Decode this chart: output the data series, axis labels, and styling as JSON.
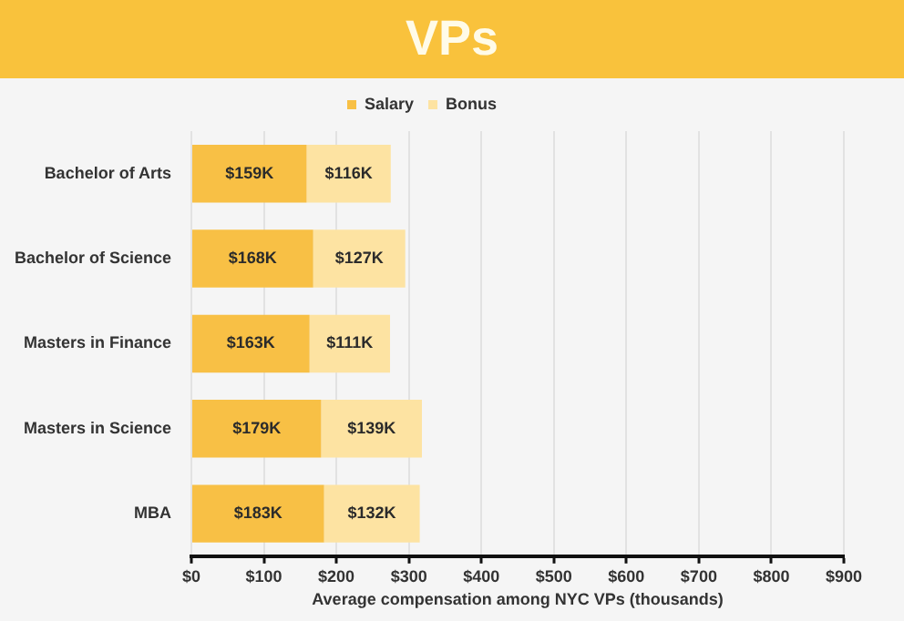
{
  "chart_data": {
    "type": "bar",
    "orientation": "horizontal",
    "stacked": true,
    "title": "VPs",
    "xlabel": "Average compensation among NYC VPs (thousands)",
    "categories": [
      "Bachelor of Arts",
      "Bachelor of Science",
      "Masters in Finance",
      "Masters in Science",
      "MBA"
    ],
    "series": [
      {
        "name": "Salary",
        "color": "#f8c045",
        "values": [
          159,
          168,
          163,
          179,
          183
        ],
        "value_labels": [
          "$159K",
          "$168K",
          "$163K",
          "$179K",
          "$183K"
        ]
      },
      {
        "name": "Bonus",
        "color": "#fde3a2",
        "values": [
          116,
          127,
          111,
          139,
          132
        ],
        "value_labels": [
          "$116K",
          "$127K",
          "$111K",
          "$139K",
          "$132K"
        ]
      }
    ],
    "xlim": [
      0,
      900
    ],
    "xticks": [
      {
        "value": 0,
        "label": "$0"
      },
      {
        "value": 100,
        "label": "$100"
      },
      {
        "value": 200,
        "label": "$200"
      },
      {
        "value": 300,
        "label": "$300"
      },
      {
        "value": 400,
        "label": "$400"
      },
      {
        "value": 500,
        "label": "$500"
      },
      {
        "value": 600,
        "label": "$600"
      },
      {
        "value": 700,
        "label": "$700"
      },
      {
        "value": 800,
        "label": "$800"
      },
      {
        "value": 900,
        "label": "$900"
      }
    ],
    "grid": "x",
    "legend": "top"
  }
}
